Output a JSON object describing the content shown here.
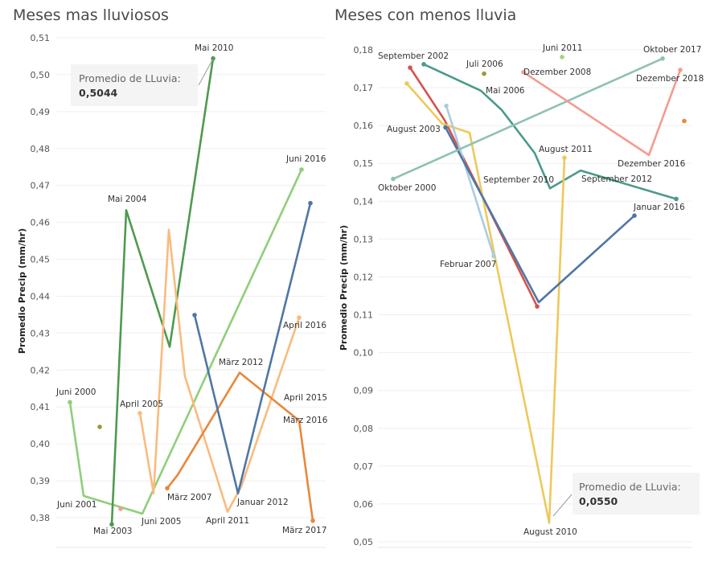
{
  "chart_data": [
    {
      "type": "line",
      "title": "Meses mas lluviosos",
      "ylabel": "Promedio Precip (mm/hr)",
      "ylim": [
        0.378,
        0.511
      ],
      "yticks": [
        "0,38",
        "0,39",
        "0,40",
        "0,41",
        "0,42",
        "0,43",
        "0,44",
        "0,45",
        "0,46",
        "0,47",
        "0,48",
        "0,49",
        "0,50",
        "0,51"
      ],
      "annotation": {
        "title": "Promedio de LLuvia:",
        "value": "0,5044"
      },
      "series": [
        {
          "color": "#8fce7a",
          "values": [
            0.4113,
            0.3859,
            0.3811,
            0.3877,
            0.4743
          ]
        },
        {
          "color": "#4e9a4e",
          "values": [
            0.3782,
            0.4633,
            0.4263,
            0.5044
          ]
        },
        {
          "color": "#f9bb7e",
          "values": [
            0.4083,
            0.3866,
            0.458,
            0.4183,
            0.3816,
            0.3884,
            0.4342
          ]
        },
        {
          "color": "#e8883a",
          "values": [
            0.388,
            0.3916,
            0.4193,
            0.4063,
            0.3792
          ]
        },
        {
          "color": "#4f76a6",
          "values": [
            0.4349,
            0.3866,
            0.4652
          ]
        },
        {
          "color": "#9c9a2d",
          "values": [
            0.4046
          ]
        },
        {
          "color": "#f49b91",
          "values": [
            0.3824
          ]
        }
      ],
      "point_labels": [
        {
          "text": "Juni 2000",
          "value": 0.4113
        },
        {
          "text": "Juni 2001",
          "value": 0.3859
        },
        {
          "text": "Mai 2003",
          "value": 0.3782
        },
        {
          "text": "Mai 2004",
          "value": 0.4633
        },
        {
          "text": "April 2005",
          "value": 0.4083
        },
        {
          "text": "Juni 2005",
          "value": 0.3811
        },
        {
          "text": "März 2007",
          "value": 0.388
        },
        {
          "text": "Mai 2010",
          "value": 0.5044
        },
        {
          "text": "April 2011",
          "value": 0.3816
        },
        {
          "text": "Januar 2012",
          "value": 0.3866
        },
        {
          "text": "März 2012",
          "value": 0.4193
        },
        {
          "text": "April 2015",
          "value": 0.4083
        },
        {
          "text": "März 2016",
          "value": 0.4063
        },
        {
          "text": "April 2016",
          "value": 0.4342
        },
        {
          "text": "Juni 2016",
          "value": 0.4743
        },
        {
          "text": "März 2017",
          "value": 0.3792
        }
      ]
    },
    {
      "type": "line",
      "title": "Meses con menos lluvia",
      "ylabel": "Promedio Precip (mm/hr)",
      "ylim": [
        0.05,
        0.182
      ],
      "yticks": [
        "0,05",
        "0,06",
        "0,07",
        "0,08",
        "0,09",
        "0,10",
        "0,11",
        "0,12",
        "0,13",
        "0,14",
        "0,15",
        "0,16",
        "0,17",
        "0,18"
      ],
      "annotation": {
        "title": "Promedio de LLuvia:",
        "value": "0,0550"
      },
      "series": [
        {
          "color": "#d6524e",
          "values": [
            0.1753,
            0.1614,
            0.1122
          ]
        },
        {
          "color": "#4a9a8c",
          "values": [
            0.1762,
            0.1692,
            0.1641,
            0.1527,
            0.1434,
            0.1481,
            0.1406
          ]
        },
        {
          "color": "#edc95a",
          "values": [
            0.1711,
            0.1605,
            0.1581,
            0.055,
            0.1515
          ]
        },
        {
          "color": "#a9cde0",
          "values": [
            0.1652,
            0.1255
          ]
        },
        {
          "color": "#4f76a6",
          "values": [
            0.1595,
            0.1133,
            0.1362
          ]
        },
        {
          "color": "#8fc1b4",
          "values": [
            0.1459,
            0.1777
          ]
        },
        {
          "color": "#f49b91",
          "values": [
            0.1741,
            0.1522,
            0.1747
          ]
        },
        {
          "color": "#a7d37e",
          "values": [
            0.1781
          ]
        },
        {
          "color": "#9c9a2d",
          "values": [
            0.1737
          ]
        },
        {
          "color": "#e8883a",
          "values": [
            0.1612
          ]
        }
      ],
      "point_labels": [
        {
          "text": "September 2002",
          "value": 0.1762
        },
        {
          "text": "Juli 2006",
          "value": 0.1737
        },
        {
          "text": "Juni 2011",
          "value": 0.1781
        },
        {
          "text": "Oktober 2017",
          "value": 0.1777
        },
        {
          "text": "Dezember 2008",
          "value": 0.1741
        },
        {
          "text": "Mai 2006",
          "value": 0.1692
        },
        {
          "text": "Dezember 2018",
          "value": 0.1747
        },
        {
          "text": "August 2003",
          "value": 0.1605
        },
        {
          "text": "August 2011",
          "value": 0.1515
        },
        {
          "text": "Dezember 2016",
          "value": 0.1522
        },
        {
          "text": "September 2010",
          "value": 0.1434
        },
        {
          "text": "September 2012",
          "value": 0.1481
        },
        {
          "text": "Oktober 2000",
          "value": 0.1459
        },
        {
          "text": "Januar 2016",
          "value": 0.1362
        },
        {
          "text": "Februar 2007",
          "value": 0.1255
        },
        {
          "text": "August 2010",
          "value": 0.055
        }
      ]
    }
  ]
}
